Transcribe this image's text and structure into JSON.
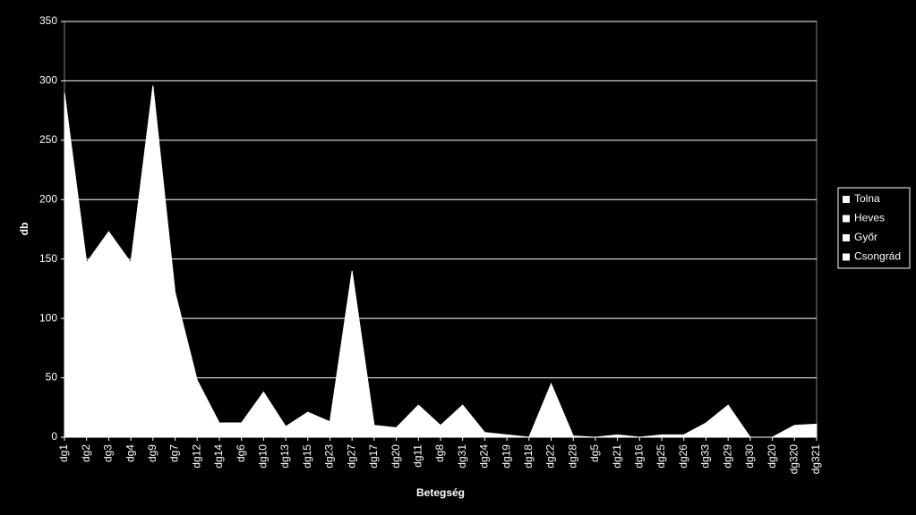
{
  "chart_data": {
    "type": "area",
    "y_label": "db",
    "x_label": "Betegség",
    "categories": [
      "dg1",
      "dg2",
      "dg3",
      "dg4",
      "dg9",
      "dg7",
      "dg12",
      "dg14",
      "dg6",
      "dg10",
      "dg13",
      "dg15",
      "dg23",
      "dg27",
      "dg17",
      "dg20",
      "dg11",
      "dg8",
      "dg31",
      "dg24",
      "dg19",
      "dg18",
      "dg22",
      "dg28",
      "dg5",
      "dg21",
      "dg16",
      "dg25",
      "dg26",
      "dg33",
      "dg29",
      "dg30",
      "dg20",
      "dg320",
      "dg321"
    ],
    "series": [
      {
        "name": "Tolna",
        "color": "#ffffff",
        "values": [
          290,
          147,
          173,
          147,
          296,
          122,
          48,
          12,
          12,
          38,
          9,
          21,
          13,
          140,
          10,
          8,
          27,
          10,
          27,
          4,
          2,
          0,
          45,
          1,
          0,
          2,
          0,
          2,
          2,
          12,
          27,
          0,
          0,
          10,
          11
        ]
      },
      {
        "name": "Heves",
        "color": "#ffffff",
        "values": [
          null,
          null,
          null,
          null,
          null,
          null,
          null,
          null,
          null,
          null,
          null,
          null,
          null,
          null,
          null,
          null,
          null,
          null,
          null,
          null,
          null,
          null,
          null,
          null,
          null,
          null,
          null,
          null,
          null,
          null,
          null,
          null,
          null,
          null,
          null
        ]
      },
      {
        "name": "Győr",
        "color": "#ffffff",
        "values": [
          null,
          null,
          null,
          null,
          null,
          null,
          null,
          null,
          null,
          null,
          null,
          null,
          null,
          null,
          null,
          null,
          null,
          null,
          null,
          null,
          null,
          null,
          null,
          null,
          null,
          null,
          null,
          null,
          null,
          null,
          null,
          null,
          null,
          null,
          null
        ]
      },
      {
        "name": "Csongrád",
        "color": "#ffffff",
        "values": [
          null,
          null,
          null,
          null,
          null,
          null,
          null,
          null,
          null,
          null,
          null,
          null,
          null,
          null,
          null,
          null,
          null,
          null,
          null,
          null,
          null,
          null,
          null,
          null,
          null,
          null,
          null,
          null,
          null,
          null,
          null,
          null,
          null,
          null,
          null
        ]
      }
    ],
    "ylim": [
      0,
      350
    ],
    "yticks": [
      0,
      50,
      100,
      150,
      200,
      250,
      300,
      350
    ],
    "grid": true,
    "legend": "right"
  }
}
